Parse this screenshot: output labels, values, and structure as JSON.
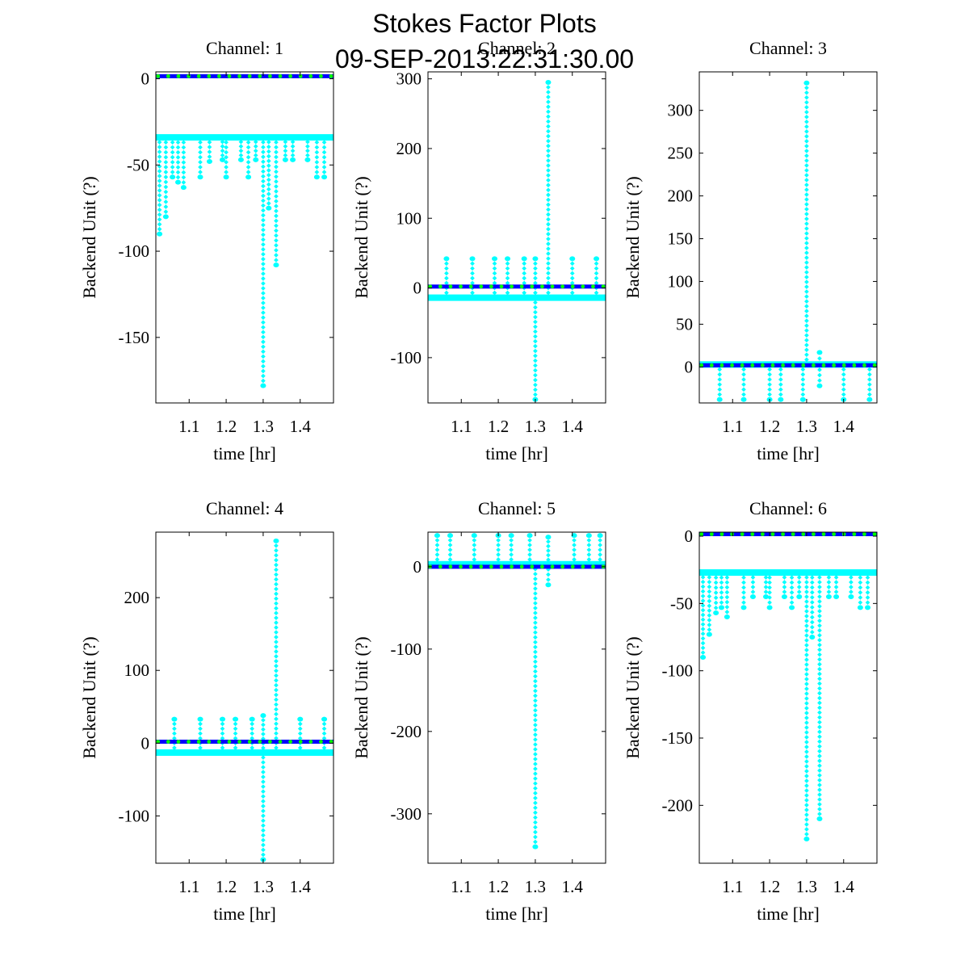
{
  "figure": {
    "title_line1": "Stokes Factor Plots",
    "title_line2": "09-SEP-2013:22:31:30.00"
  },
  "colors": {
    "cyan": "#00ffff",
    "blue": "#0000ff",
    "green": "#00ff00",
    "frame": "#000000"
  },
  "chart_data": [
    {
      "type": "scatter",
      "title": "Channel: 1",
      "xlabel": "time [hr]",
      "ylabel": "Backend Unit (?)",
      "xlim": [
        1.01,
        1.49
      ],
      "ylim": [
        -188,
        4
      ],
      "xticks": [
        1.1,
        1.2,
        1.3,
        1.4
      ],
      "xtick_labels": [
        "1.1",
        "1.2",
        "1.3",
        "1.4"
      ],
      "yticks": [
        0,
        -50,
        -100,
        -150
      ],
      "ytick_labels": [
        "0",
        "-50",
        "-100",
        "-150"
      ],
      "series": [
        {
          "name": "blue",
          "color": "#0000ff",
          "baseline": 1.5
        },
        {
          "name": "green",
          "color": "#00ff00",
          "baseline": 1.5
        },
        {
          "name": "cyan",
          "color": "#00ffff",
          "baseline": -34,
          "spikes": [
            {
              "x": 1.02,
              "to": -90
            },
            {
              "x": 1.037,
              "to": -80
            },
            {
              "x": 1.055,
              "to": -57
            },
            {
              "x": 1.07,
              "to": -60
            },
            {
              "x": 1.085,
              "to": -63
            },
            {
              "x": 1.13,
              "to": -57
            },
            {
              "x": 1.155,
              "to": -48
            },
            {
              "x": 1.19,
              "to": -47
            },
            {
              "x": 1.2,
              "to": -57
            },
            {
              "x": 1.24,
              "to": -47
            },
            {
              "x": 1.26,
              "to": -57
            },
            {
              "x": 1.28,
              "to": -47
            },
            {
              "x": 1.3,
              "to": -178
            },
            {
              "x": 1.315,
              "to": -75
            },
            {
              "x": 1.335,
              "to": -108
            },
            {
              "x": 1.36,
              "to": -47
            },
            {
              "x": 1.38,
              "to": -47
            },
            {
              "x": 1.42,
              "to": -47
            },
            {
              "x": 1.445,
              "to": -57
            },
            {
              "x": 1.465,
              "to": -57
            }
          ]
        }
      ]
    },
    {
      "type": "scatter",
      "title": "Channel: 2",
      "xlabel": "time [hr]",
      "ylabel": "Backend Unit (?)",
      "xlim": [
        1.01,
        1.49
      ],
      "ylim": [
        -165,
        310
      ],
      "xticks": [
        1.1,
        1.2,
        1.3,
        1.4
      ],
      "xtick_labels": [
        "1.1",
        "1.2",
        "1.3",
        "1.4"
      ],
      "yticks": [
        300,
        200,
        100,
        0,
        -100
      ],
      "ytick_labels": [
        "300",
        "200",
        "100",
        "0",
        "-100"
      ],
      "series": [
        {
          "name": "blue",
          "color": "#0000ff",
          "baseline": 2
        },
        {
          "name": "green",
          "color": "#00ff00",
          "baseline": 2
        },
        {
          "name": "cyan",
          "color": "#00ffff",
          "baseline": -14,
          "spikes": [
            {
              "x": 1.3,
              "to": -160
            },
            {
              "x": 1.335,
              "to": 295
            },
            {
              "x": 1.06,
              "to": 42
            },
            {
              "x": 1.13,
              "to": 42
            },
            {
              "x": 1.19,
              "to": 42
            },
            {
              "x": 1.225,
              "to": 42
            },
            {
              "x": 1.27,
              "to": 42
            },
            {
              "x": 1.3,
              "to": 42
            },
            {
              "x": 1.4,
              "to": 42
            },
            {
              "x": 1.465,
              "to": 42
            }
          ]
        }
      ]
    },
    {
      "type": "scatter",
      "title": "Channel: 3",
      "xlabel": "time [hr]",
      "ylabel": "Backend Unit (?)",
      "xlim": [
        1.01,
        1.49
      ],
      "ylim": [
        -42,
        345
      ],
      "xticks": [
        1.1,
        1.2,
        1.3,
        1.4
      ],
      "xtick_labels": [
        "1.1",
        "1.2",
        "1.3",
        "1.4"
      ],
      "yticks": [
        300,
        250,
        200,
        150,
        100,
        50,
        0
      ],
      "ytick_labels": [
        "300",
        "250",
        "200",
        "150",
        "100",
        "50",
        "0"
      ],
      "series": [
        {
          "name": "blue",
          "color": "#0000ff",
          "baseline": 2
        },
        {
          "name": "green",
          "color": "#00ff00",
          "baseline": 2
        },
        {
          "name": "cyan",
          "color": "#00ffff",
          "baseline": 3,
          "spikes": [
            {
              "x": 1.3,
              "to": 332
            },
            {
              "x": 1.335,
              "to": 17
            },
            {
              "x": 1.335,
              "to": -22
            },
            {
              "x": 1.065,
              "to": -38
            },
            {
              "x": 1.13,
              "to": -38
            },
            {
              "x": 1.2,
              "to": -38
            },
            {
              "x": 1.23,
              "to": -38
            },
            {
              "x": 1.29,
              "to": -38
            },
            {
              "x": 1.4,
              "to": -38
            },
            {
              "x": 1.47,
              "to": -38
            }
          ]
        }
      ]
    },
    {
      "type": "scatter",
      "title": "Channel: 4",
      "xlabel": "time [hr]",
      "ylabel": "Backend Unit (?)",
      "xlim": [
        1.01,
        1.49
      ],
      "ylim": [
        -165,
        290
      ],
      "xticks": [
        1.1,
        1.2,
        1.3,
        1.4
      ],
      "xtick_labels": [
        "1.1",
        "1.2",
        "1.3",
        "1.4"
      ],
      "yticks": [
        200,
        100,
        0,
        -100
      ],
      "ytick_labels": [
        "200",
        "100",
        "0",
        "-100"
      ],
      "series": [
        {
          "name": "blue",
          "color": "#0000ff",
          "baseline": 2
        },
        {
          "name": "green",
          "color": "#00ff00",
          "baseline": 2
        },
        {
          "name": "cyan",
          "color": "#00ffff",
          "baseline": -13,
          "spikes": [
            {
              "x": 1.3,
              "to": -160
            },
            {
              "x": 1.335,
              "to": 278
            },
            {
              "x": 1.06,
              "to": 33
            },
            {
              "x": 1.13,
              "to": 33
            },
            {
              "x": 1.19,
              "to": 33
            },
            {
              "x": 1.225,
              "to": 33
            },
            {
              "x": 1.27,
              "to": 33
            },
            {
              "x": 1.3,
              "to": 38
            },
            {
              "x": 1.4,
              "to": 33
            },
            {
              "x": 1.465,
              "to": 33
            }
          ]
        }
      ]
    },
    {
      "type": "scatter",
      "title": "Channel: 5",
      "xlabel": "time [hr]",
      "ylabel": "Backend Unit (?)",
      "xlim": [
        1.01,
        1.49
      ],
      "ylim": [
        -360,
        42
      ],
      "xticks": [
        1.1,
        1.2,
        1.3,
        1.4
      ],
      "xtick_labels": [
        "1.1",
        "1.2",
        "1.3",
        "1.4"
      ],
      "yticks": [
        0,
        -100,
        -200,
        -300
      ],
      "ytick_labels": [
        "0",
        "-100",
        "-200",
        "-300"
      ],
      "series": [
        {
          "name": "blue",
          "color": "#0000ff",
          "baseline": 0
        },
        {
          "name": "green",
          "color": "#00ff00",
          "baseline": 0
        },
        {
          "name": "cyan",
          "color": "#00ffff",
          "baseline": 3,
          "spikes": [
            {
              "x": 1.3,
              "to": -340
            },
            {
              "x": 1.335,
              "to": -22
            },
            {
              "x": 1.335,
              "to": 36
            },
            {
              "x": 1.035,
              "to": 38
            },
            {
              "x": 1.07,
              "to": 38
            },
            {
              "x": 1.135,
              "to": 38
            },
            {
              "x": 1.2,
              "to": 38
            },
            {
              "x": 1.235,
              "to": 38
            },
            {
              "x": 1.285,
              "to": 38
            },
            {
              "x": 1.405,
              "to": 38
            },
            {
              "x": 1.445,
              "to": 38
            },
            {
              "x": 1.475,
              "to": 38
            }
          ]
        }
      ]
    },
    {
      "type": "scatter",
      "title": "Channel: 6",
      "xlabel": "time [hr]",
      "ylabel": "Backend Unit (?)",
      "xlim": [
        1.01,
        1.49
      ],
      "ylim": [
        -243,
        3
      ],
      "xticks": [
        1.1,
        1.2,
        1.3,
        1.4
      ],
      "xtick_labels": [
        "1.1",
        "1.2",
        "1.3",
        "1.4"
      ],
      "yticks": [
        0,
        -50,
        -100,
        -150,
        -200
      ],
      "ytick_labels": [
        "0",
        "-50",
        "-100",
        "-150",
        "-200"
      ],
      "series": [
        {
          "name": "blue",
          "color": "#0000ff",
          "baseline": 1.5
        },
        {
          "name": "green",
          "color": "#00ff00",
          "baseline": 1.5
        },
        {
          "name": "cyan",
          "color": "#00ffff",
          "baseline": -27,
          "spikes": [
            {
              "x": 1.02,
              "to": -90
            },
            {
              "x": 1.037,
              "to": -73
            },
            {
              "x": 1.055,
              "to": -57
            },
            {
              "x": 1.07,
              "to": -53
            },
            {
              "x": 1.085,
              "to": -60
            },
            {
              "x": 1.13,
              "to": -53
            },
            {
              "x": 1.155,
              "to": -45
            },
            {
              "x": 1.19,
              "to": -45
            },
            {
              "x": 1.2,
              "to": -53
            },
            {
              "x": 1.24,
              "to": -45
            },
            {
              "x": 1.26,
              "to": -53
            },
            {
              "x": 1.28,
              "to": -45
            },
            {
              "x": 1.3,
              "to": -225
            },
            {
              "x": 1.315,
              "to": -75
            },
            {
              "x": 1.335,
              "to": -210
            },
            {
              "x": 1.36,
              "to": -45
            },
            {
              "x": 1.38,
              "to": -45
            },
            {
              "x": 1.42,
              "to": -45
            },
            {
              "x": 1.445,
              "to": -53
            },
            {
              "x": 1.465,
              "to": -53
            }
          ]
        }
      ]
    }
  ]
}
